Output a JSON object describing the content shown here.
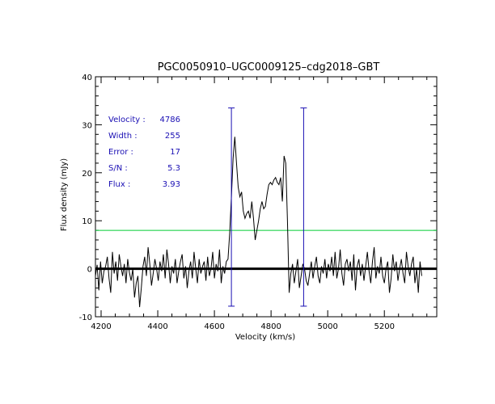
{
  "chart_data": {
    "type": "line",
    "title": "PGC0050910–UGC0009125–cdg2018–GBT",
    "xlabel": "Velocity (km/s)",
    "ylabel": "Flux density (mJy)",
    "xlim": [
      4180,
      5385
    ],
    "ylim": [
      -10,
      40
    ],
    "x_ticks": [
      4200,
      4400,
      4600,
      4800,
      5000,
      5200
    ],
    "y_ticks": [
      -10,
      0,
      10,
      20,
      30,
      40
    ],
    "grid": false,
    "colors": {
      "spectrum": "#000000",
      "zero_line": "#000000",
      "threshold": "#00cc33",
      "markers": "#1a0fb4",
      "annotation": "#1a0fb4"
    },
    "threshold_line": {
      "y": 8
    },
    "markers": [
      {
        "x": 4660,
        "y_low": -7.8,
        "y_high": 33.5
      },
      {
        "x": 4915,
        "y_low": -7.8,
        "y_high": 33.5
      }
    ],
    "annotations": [
      {
        "label": "Velocity :",
        "value": "4786"
      },
      {
        "label": "Width :",
        "value": "255"
      },
      {
        "label": "Error :",
        "value": "17"
      },
      {
        "label": "S/N :",
        "value": "5.3"
      },
      {
        "label": "Flux :",
        "value": "3.93"
      }
    ],
    "series": [
      {
        "x0": 4180,
        "dx": 6,
        "values": [
          -1.5,
          0.8,
          -4.5,
          1.5,
          -3.0,
          -0.5,
          0.5,
          2.5,
          -2.0,
          -5.0,
          3.5,
          -1.0,
          1.5,
          -2.5,
          3.0,
          0.5,
          -1.5,
          1.0,
          -3.0,
          2.0,
          -0.8,
          -2.5,
          0.0,
          -6.0,
          -3.0,
          -1.5,
          -8.0,
          -4.0,
          0.5,
          2.5,
          -1.5,
          4.5,
          1.0,
          -3.5,
          -1.0,
          2.0,
          0.0,
          -2.5,
          1.5,
          -0.5,
          3.0,
          -2.0,
          4.0,
          1.0,
          -3.0,
          0.5,
          -1.0,
          2.0,
          -3.0,
          -0.5,
          1.5,
          3.0,
          -2.0,
          0.5,
          -4.0,
          -0.5,
          1.5,
          -2.0,
          3.5,
          0.0,
          -3.0,
          2.0,
          -1.0,
          0.5,
          1.5,
          -2.5,
          2.5,
          -1.5,
          0.0,
          3.5,
          -2.0,
          1.0,
          -0.5,
          4.0,
          -3.0,
          0.5,
          -1.0,
          1.5,
          2.0,
          7.5,
          15.0,
          23.0,
          27.5,
          22.0,
          17.0,
          15.0,
          16.0,
          12.0,
          10.5,
          11.5,
          12.0,
          10.5,
          14.0,
          10.5,
          6.0,
          8.0,
          10.0,
          12.5,
          14.0,
          12.5,
          13.0,
          15.5,
          17.5,
          18.0,
          17.5,
          18.5,
          19.0,
          18.0,
          17.5,
          19.0,
          14.0,
          23.5,
          22.0,
          10.0,
          -5.0,
          -1.0,
          1.0,
          -3.0,
          -0.5,
          2.0,
          -4.0,
          -1.5,
          1.0,
          0.0,
          -2.5,
          -3.5,
          -1.0,
          1.5,
          -2.0,
          0.5,
          2.5,
          -1.5,
          -3.0,
          0.5,
          -1.0,
          2.0,
          -2.0,
          1.0,
          -0.5,
          2.5,
          -1.5,
          3.5,
          -2.0,
          0.0,
          4.0,
          -1.0,
          -3.5,
          1.0,
          2.0,
          -0.5,
          1.5,
          -2.5,
          3.0,
          -4.5,
          0.5,
          2.0,
          -1.5,
          1.0,
          -2.5,
          0.5,
          3.5,
          -0.5,
          -3.0,
          1.5,
          4.5,
          -2.0,
          0.5,
          -1.0,
          2.5,
          -1.5,
          -3.0,
          0.0,
          1.5,
          -5.0,
          -2.0,
          3.0,
          -0.5,
          1.5,
          -2.5,
          0.0,
          2.0,
          -1.0,
          -3.0,
          3.5,
          0.5,
          -1.5,
          1.0,
          2.5,
          -3.0,
          0.0,
          -5.0,
          1.5,
          -1.5
        ]
      }
    ]
  }
}
